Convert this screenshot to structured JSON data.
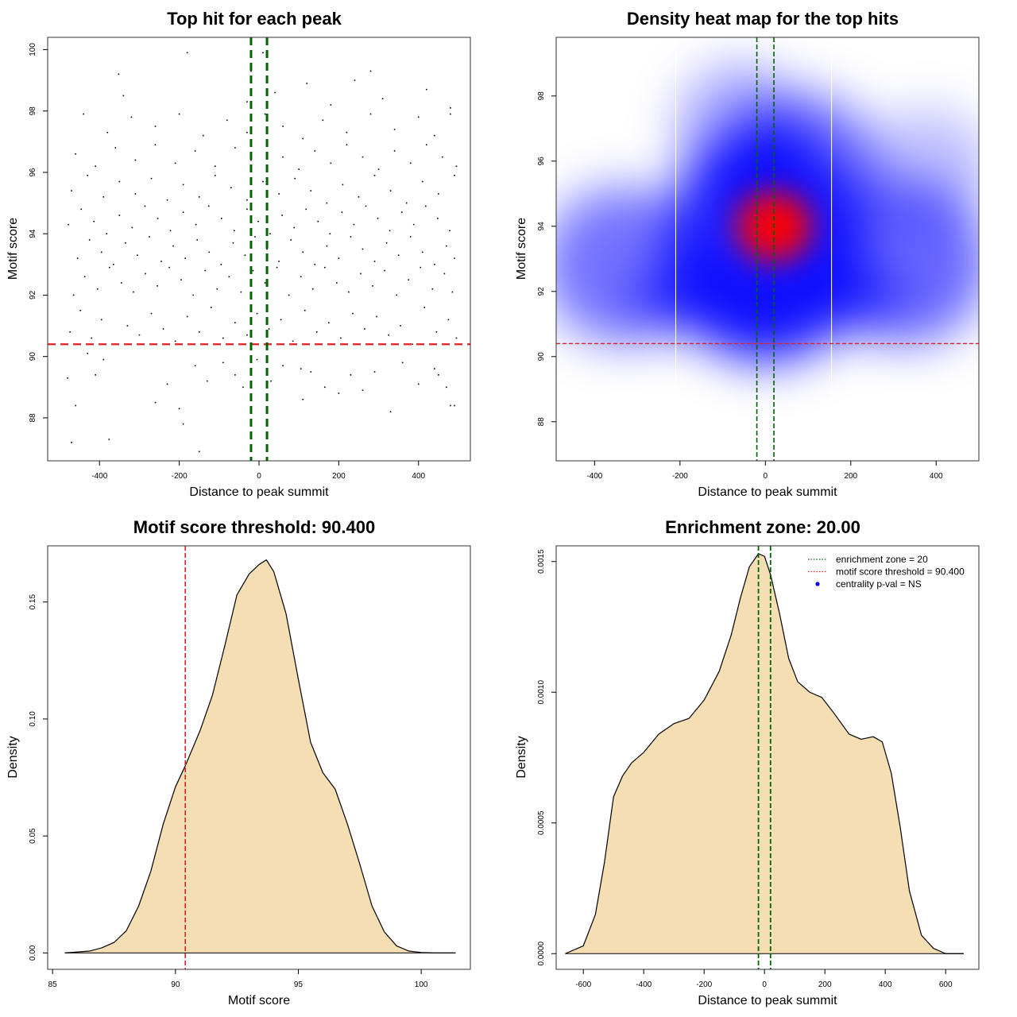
{
  "chart_data": [
    {
      "type": "scatter",
      "title": "Top hit for each peak",
      "xlabel": "Distance to peak summit",
      "ylabel": "Motif score",
      "xlim": [
        -530,
        530
      ],
      "ylim": [
        86.6,
        100.4
      ],
      "xticks": [
        -400,
        -200,
        0,
        200,
        400
      ],
      "yticks": [
        88,
        90,
        92,
        94,
        96,
        98,
        100
      ],
      "xtick_labels": [
        "-400",
        "-200",
        "0",
        "200",
        "400"
      ],
      "ytick_labels": [
        "88",
        "90",
        "92",
        "94",
        "96",
        "98",
        "100"
      ],
      "threshold_y": 90.4,
      "enrichment_x": [
        -20,
        20
      ],
      "threshold_color": "#dd2222",
      "enrichment_color": "#006400",
      "points": [
        [
          -470,
          87.2
        ],
        [
          -376,
          87.3
        ],
        [
          -150,
          86.9
        ],
        [
          -390,
          89.9
        ],
        [
          -480,
          89.3
        ],
        [
          -460,
          88.4
        ],
        [
          -430,
          90.1
        ],
        [
          -410,
          89.4
        ],
        [
          -260,
          88.5
        ],
        [
          -230,
          89.1
        ],
        [
          -200,
          88.3
        ],
        [
          -190,
          87.8
        ],
        [
          -160,
          89.7
        ],
        [
          -130,
          89.2
        ],
        [
          -90,
          89.8
        ],
        [
          -60,
          89.4
        ],
        [
          -40,
          89.0
        ],
        [
          -5,
          89.9
        ],
        [
          30,
          89.2
        ],
        [
          60,
          89.7
        ],
        [
          105,
          89.6
        ],
        [
          130,
          89.5
        ],
        [
          165,
          89.0
        ],
        [
          200,
          88.8
        ],
        [
          230,
          89.4
        ],
        [
          260,
          88.9
        ],
        [
          290,
          89.5
        ],
        [
          330,
          88.2
        ],
        [
          360,
          89.8
        ],
        [
          400,
          89.1
        ],
        [
          440,
          89.6
        ],
        [
          470,
          89.0
        ],
        [
          480,
          88.4
        ],
        [
          490,
          88.4
        ],
        [
          450,
          89.4
        ],
        [
          110,
          88.6
        ],
        [
          -474,
          90.8
        ],
        [
          -448,
          91.5
        ],
        [
          -420,
          90.6
        ],
        [
          -395,
          91.2
        ],
        [
          -360,
          90.4
        ],
        [
          -330,
          91.0
        ],
        [
          -300,
          90.7
        ],
        [
          -270,
          91.4
        ],
        [
          -240,
          90.9
        ],
        [
          -210,
          90.5
        ],
        [
          -180,
          91.3
        ],
        [
          -150,
          90.8
        ],
        [
          -120,
          91.6
        ],
        [
          -90,
          90.6
        ],
        [
          -60,
          91.1
        ],
        [
          -30,
          90.7
        ],
        [
          -5,
          91.4
        ],
        [
          25,
          90.9
        ],
        [
          55,
          91.2
        ],
        [
          85,
          90.5
        ],
        [
          115,
          91.5
        ],
        [
          145,
          90.8
        ],
        [
          175,
          91.1
        ],
        [
          205,
          90.6
        ],
        [
          235,
          91.4
        ],
        [
          265,
          90.9
        ],
        [
          295,
          91.3
        ],
        [
          325,
          90.7
        ],
        [
          355,
          91.0
        ],
        [
          385,
          90.4
        ],
        [
          415,
          91.6
        ],
        [
          445,
          90.8
        ],
        [
          475,
          91.2
        ],
        [
          495,
          90.6
        ],
        [
          -465,
          92.0
        ],
        [
          -437,
          92.6
        ],
        [
          -405,
          92.2
        ],
        [
          -375,
          92.9
        ],
        [
          -345,
          92.4
        ],
        [
          -315,
          92.1
        ],
        [
          -285,
          92.7
        ],
        [
          -255,
          92.3
        ],
        [
          -225,
          92.9
        ],
        [
          -195,
          92.5
        ],
        [
          -165,
          92.0
        ],
        [
          -135,
          92.8
        ],
        [
          -105,
          92.2
        ],
        [
          -75,
          92.6
        ],
        [
          -45,
          92.1
        ],
        [
          -15,
          92.8
        ],
        [
          15,
          92.4
        ],
        [
          45,
          92.9
        ],
        [
          75,
          92.0
        ],
        [
          105,
          92.6
        ],
        [
          135,
          92.2
        ],
        [
          165,
          92.9
        ],
        [
          195,
          92.4
        ],
        [
          225,
          92.1
        ],
        [
          255,
          92.7
        ],
        [
          285,
          92.3
        ],
        [
          315,
          92.8
        ],
        [
          345,
          92.0
        ],
        [
          375,
          92.5
        ],
        [
          405,
          92.9
        ],
        [
          435,
          92.2
        ],
        [
          465,
          92.7
        ],
        [
          485,
          92.1
        ],
        [
          -455,
          93.2
        ],
        [
          -425,
          93.8
        ],
        [
          -395,
          93.4
        ],
        [
          -365,
          93.0
        ],
        [
          -335,
          93.7
        ],
        [
          -305,
          93.3
        ],
        [
          -275,
          93.9
        ],
        [
          -245,
          93.1
        ],
        [
          -215,
          93.6
        ],
        [
          -185,
          93.2
        ],
        [
          -155,
          93.8
        ],
        [
          -125,
          93.4
        ],
        [
          -95,
          93.0
        ],
        [
          -65,
          93.7
        ],
        [
          -35,
          93.3
        ],
        [
          -10,
          93.9
        ],
        [
          20,
          93.5
        ],
        [
          50,
          93.1
        ],
        [
          80,
          93.8
        ],
        [
          110,
          93.4
        ],
        [
          140,
          93.0
        ],
        [
          170,
          93.6
        ],
        [
          200,
          93.2
        ],
        [
          230,
          93.9
        ],
        [
          260,
          93.5
        ],
        [
          290,
          93.1
        ],
        [
          320,
          93.7
        ],
        [
          350,
          93.3
        ],
        [
          380,
          93.9
        ],
        [
          410,
          93.4
        ],
        [
          440,
          93.0
        ],
        [
          470,
          93.6
        ],
        [
          490,
          93.2
        ],
        [
          -478,
          94.3
        ],
        [
          -446,
          94.8
        ],
        [
          -414,
          94.4
        ],
        [
          -382,
          94.0
        ],
        [
          -350,
          94.6
        ],
        [
          -318,
          94.2
        ],
        [
          -286,
          94.9
        ],
        [
          -254,
          94.5
        ],
        [
          -222,
          94.1
        ],
        [
          -190,
          94.7
        ],
        [
          -158,
          94.3
        ],
        [
          -126,
          94.9
        ],
        [
          -94,
          94.5
        ],
        [
          -62,
          94.1
        ],
        [
          -30,
          94.8
        ],
        [
          -2,
          94.4
        ],
        [
          28,
          94.0
        ],
        [
          58,
          94.6
        ],
        [
          88,
          94.2
        ],
        [
          118,
          94.8
        ],
        [
          148,
          94.4
        ],
        [
          178,
          94.0
        ],
        [
          208,
          94.7
        ],
        [
          238,
          94.3
        ],
        [
          268,
          94.9
        ],
        [
          298,
          94.5
        ],
        [
          328,
          94.1
        ],
        [
          358,
          94.7
        ],
        [
          388,
          94.3
        ],
        [
          418,
          94.9
        ],
        [
          448,
          94.5
        ],
        [
          478,
          94.1
        ],
        [
          -470,
          95.4
        ],
        [
          -430,
          95.9
        ],
        [
          -390,
          95.2
        ],
        [
          -350,
          95.7
        ],
        [
          -310,
          95.3
        ],
        [
          -270,
          95.8
        ],
        [
          -230,
          95.1
        ],
        [
          -190,
          95.6
        ],
        [
          -150,
          95.2
        ],
        [
          -110,
          95.9
        ],
        [
          -70,
          95.5
        ],
        [
          -30,
          95.1
        ],
        [
          10,
          95.7
        ],
        [
          50,
          95.3
        ],
        [
          90,
          95.8
        ],
        [
          130,
          95.4
        ],
        [
          170,
          95.0
        ],
        [
          210,
          95.6
        ],
        [
          250,
          95.2
        ],
        [
          290,
          95.9
        ],
        [
          330,
          95.4
        ],
        [
          370,
          95.0
        ],
        [
          410,
          95.7
        ],
        [
          450,
          95.3
        ],
        [
          490,
          95.9
        ],
        [
          -460,
          96.6
        ],
        [
          -410,
          96.2
        ],
        [
          -360,
          96.8
        ],
        [
          -310,
          96.4
        ],
        [
          -260,
          96.9
        ],
        [
          -210,
          96.3
        ],
        [
          -160,
          96.7
        ],
        [
          -110,
          96.2
        ],
        [
          -60,
          96.8
        ],
        [
          -20,
          96.4
        ],
        [
          20,
          96.9
        ],
        [
          60,
          96.5
        ],
        [
          100,
          96.1
        ],
        [
          140,
          96.7
        ],
        [
          180,
          96.3
        ],
        [
          220,
          96.9
        ],
        [
          260,
          96.5
        ],
        [
          300,
          96.1
        ],
        [
          340,
          96.7
        ],
        [
          380,
          96.3
        ],
        [
          420,
          96.9
        ],
        [
          460,
          96.5
        ],
        [
          495,
          96.2
        ],
        [
          -440,
          97.9
        ],
        [
          -380,
          97.3
        ],
        [
          -320,
          97.8
        ],
        [
          -260,
          97.5
        ],
        [
          -200,
          97.9
        ],
        [
          -140,
          97.2
        ],
        [
          -80,
          97.7
        ],
        [
          -30,
          97.3
        ],
        [
          15,
          97.9
        ],
        [
          60,
          97.5
        ],
        [
          110,
          97.1
        ],
        [
          160,
          97.7
        ],
        [
          220,
          97.3
        ],
        [
          280,
          97.9
        ],
        [
          340,
          97.4
        ],
        [
          400,
          97.8
        ],
        [
          440,
          97.2
        ],
        [
          480,
          97.9
        ],
        [
          -352,
          99.2
        ],
        [
          -180,
          99.9
        ],
        [
          -20,
          99.3
        ],
        [
          10,
          99.9
        ],
        [
          120,
          98.9
        ],
        [
          240,
          99.0
        ],
        [
          280,
          99.3
        ],
        [
          420,
          98.7
        ],
        [
          -340,
          98.5
        ],
        [
          -30,
          98.3
        ],
        [
          40,
          98.6
        ],
        [
          180,
          98.2
        ],
        [
          310,
          98.4
        ],
        [
          480,
          98.1
        ]
      ]
    },
    {
      "type": "heatmap",
      "title": "Density heat map for the top hits",
      "xlabel": "Distance to peak summit",
      "ylabel": "Motif score",
      "xlim": [
        -490,
        500
      ],
      "ylim": [
        86.8,
        99.8
      ],
      "xticks": [
        -400,
        -200,
        0,
        200,
        400
      ],
      "yticks": [
        88,
        90,
        92,
        94,
        96,
        98
      ],
      "xtick_labels": [
        "-400",
        "-200",
        "0",
        "200",
        "400"
      ],
      "ytick_labels": [
        "88",
        "90",
        "92",
        "94",
        "96",
        "98"
      ],
      "threshold_y": 90.4,
      "enrichment_x": [
        -20,
        20
      ],
      "white_lines_x": [
        -210,
        155
      ],
      "color_low": "#ffffff",
      "color_mid": "#0000ff",
      "color_high": "#ff0000"
    },
    {
      "type": "area",
      "title": "Motif score threshold: 90.400",
      "xlabel": "Motif score",
      "ylabel": "Density",
      "xlim": [
        84.8,
        102.0
      ],
      "ylim": [
        -0.007,
        0.174
      ],
      "xticks": [
        85,
        90,
        95,
        100
      ],
      "yticks": [
        0.0,
        0.05,
        0.1,
        0.15
      ],
      "xtick_labels": [
        "85",
        "90",
        "95",
        "100"
      ],
      "ytick_labels": [
        "0.00",
        "0.05",
        "0.10",
        "0.15"
      ],
      "threshold_x": 90.4,
      "fill_color": "#f5deb3",
      "x": [
        85.5,
        86.5,
        87.0,
        87.5,
        88.0,
        88.5,
        89.0,
        89.5,
        90.0,
        90.4,
        91.0,
        91.5,
        92.0,
        92.5,
        93.0,
        93.4,
        93.7,
        94.0,
        94.5,
        95.0,
        95.5,
        96.0,
        96.5,
        97.0,
        97.5,
        98.0,
        98.5,
        99.0,
        99.5,
        100.0,
        100.5,
        101.4
      ],
      "y": [
        0.0,
        0.0008,
        0.0022,
        0.0045,
        0.0095,
        0.02,
        0.035,
        0.055,
        0.071,
        0.08,
        0.095,
        0.11,
        0.131,
        0.153,
        0.162,
        0.166,
        0.168,
        0.163,
        0.145,
        0.117,
        0.09,
        0.077,
        0.07,
        0.055,
        0.038,
        0.02,
        0.009,
        0.003,
        0.0008,
        0.0002,
        0.0,
        0.0
      ]
    },
    {
      "type": "area",
      "title": "Enrichment zone: 20.00",
      "xlabel": "Distance to peak summit",
      "ylabel": "Density",
      "xlim": [
        -690,
        710
      ],
      "ylim": [
        -6e-05,
        0.00156
      ],
      "xticks": [
        -600,
        -400,
        -200,
        0,
        200,
        400,
        600
      ],
      "yticks": [
        0.0,
        0.0005,
        0.001,
        0.0015
      ],
      "xtick_labels": [
        "-600",
        "-400",
        "-200",
        "0",
        "200",
        "400",
        "600"
      ],
      "ytick_labels": [
        "0.0000",
        "0.0005",
        "0.0010",
        "0.0015"
      ],
      "enrichment_x": [
        -20,
        20
      ],
      "fill_color": "#f5deb3",
      "x": [
        -660,
        -600,
        -560,
        -530,
        -500,
        -470,
        -440,
        -400,
        -350,
        -300,
        -250,
        -200,
        -150,
        -110,
        -80,
        -50,
        -20,
        0,
        20,
        50,
        80,
        110,
        150,
        190,
        230,
        280,
        320,
        360,
        390,
        420,
        450,
        480,
        520,
        560,
        600,
        660
      ],
      "y": [
        0.0,
        3e-05,
        0.00015,
        0.00035,
        0.0006,
        0.00068,
        0.00073,
        0.00077,
        0.00084,
        0.00088,
        0.0009,
        0.00097,
        0.00108,
        0.00122,
        0.00136,
        0.00148,
        0.00153,
        0.00152,
        0.00145,
        0.0013,
        0.00113,
        0.00104,
        0.001,
        0.00098,
        0.00092,
        0.00084,
        0.00082,
        0.00083,
        0.00081,
        0.00069,
        0.00048,
        0.00024,
        7e-05,
        2e-05,
        0.0,
        0.0
      ],
      "legend": [
        {
          "label": "enrichment zone = 20",
          "color": "#006400",
          "style": "dotted-line"
        },
        {
          "label": "motif score threshold = 90.400",
          "color": "#dd2222",
          "style": "dotted-line"
        },
        {
          "label": "centrality p-val = NS",
          "color": "#0000ff",
          "style": "point"
        }
      ]
    }
  ]
}
